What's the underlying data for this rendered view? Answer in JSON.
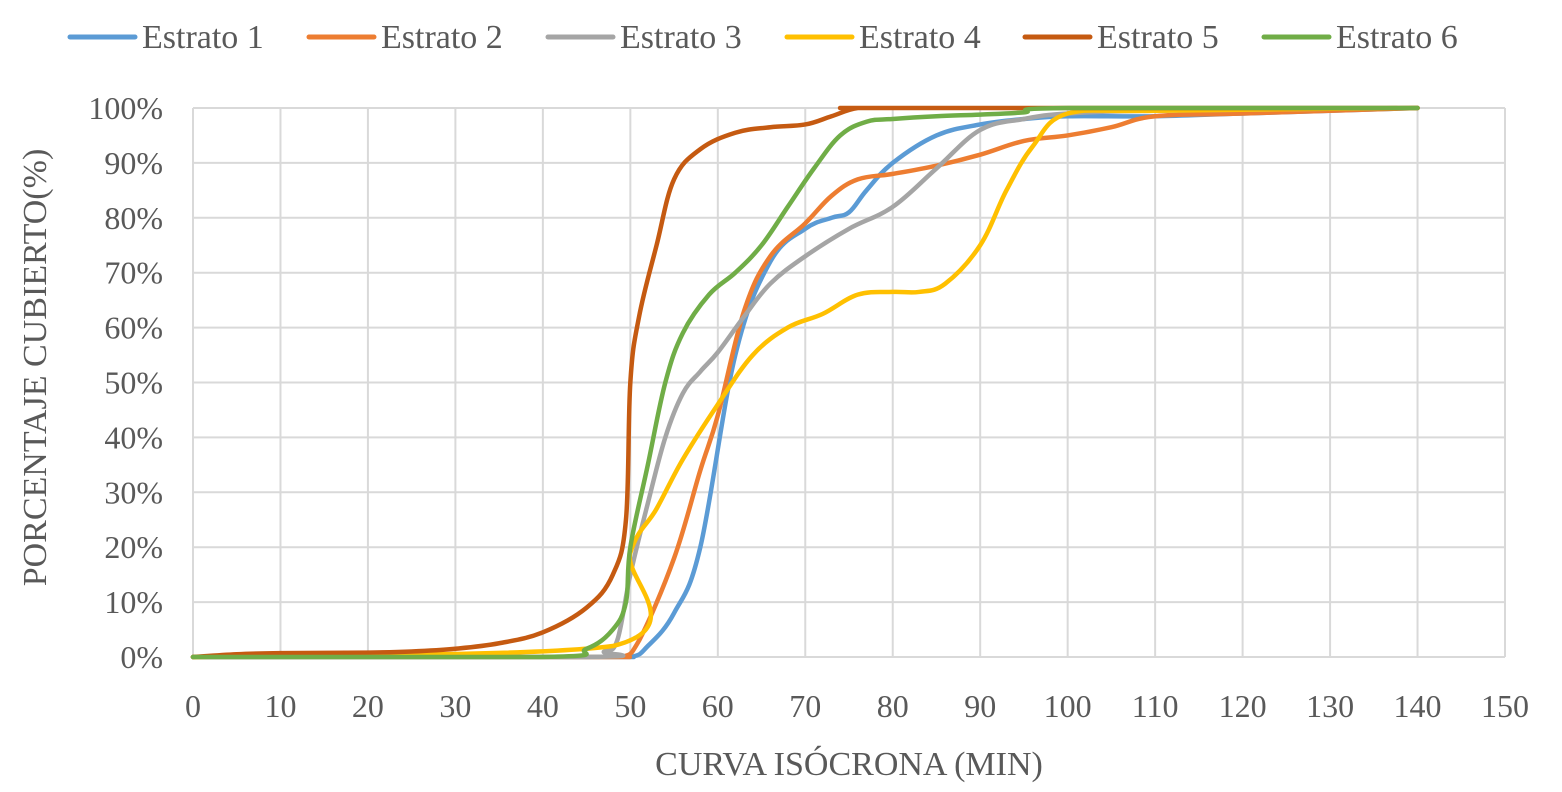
{
  "chart_data": {
    "type": "line",
    "xlabel": "CURVA ISÓCRONA (MIN)",
    "ylabel": "PORCENTAJE CUBIERTO(%)",
    "xlim": [
      0,
      150
    ],
    "ylim": [
      0,
      100
    ],
    "x_ticks": [
      "0",
      "10",
      "20",
      "30",
      "40",
      "50",
      "60",
      "70",
      "80",
      "90",
      "100",
      "110",
      "120",
      "130",
      "140",
      "150"
    ],
    "y_ticks": [
      "0%",
      "10%",
      "20%",
      "30%",
      "40%",
      "50%",
      "60%",
      "70%",
      "80%",
      "90%",
      "100%"
    ],
    "grid": true,
    "legend_position": "top",
    "series": [
      {
        "name": "Estrato 1",
        "color": "#5b9bd5",
        "x": [
          0,
          45,
          50,
          52,
          55,
          58,
          62,
          66,
          70,
          73,
          75,
          77,
          80,
          85,
          90,
          95,
          100,
          110,
          120,
          140
        ],
        "y": [
          0,
          0,
          0,
          2,
          8,
          20,
          55,
          72,
          78,
          80,
          81,
          85,
          90,
          95,
          97,
          98,
          98.5,
          98.5,
          99,
          100
        ]
      },
      {
        "name": "Estrato 2",
        "color": "#ed7d31",
        "x": [
          0,
          45,
          49,
          51,
          55,
          58,
          60,
          63,
          66,
          70,
          73,
          76,
          80,
          85,
          90,
          95,
          100,
          105,
          110,
          120,
          140
        ],
        "y": [
          0,
          0,
          0,
          3,
          18,
          34,
          44,
          63,
          73,
          79,
          84,
          87,
          88,
          89.5,
          91.5,
          94,
          95,
          96.5,
          98.5,
          99,
          100
        ]
      },
      {
        "name": "Estrato 3",
        "color": "#a5a5a5",
        "x": [
          0,
          45,
          47,
          48.5,
          50,
          52,
          54,
          56,
          58,
          60,
          63,
          66,
          70,
          75,
          80,
          85,
          90,
          95,
          100,
          110,
          140
        ],
        "y": [
          0,
          0,
          1,
          3,
          15,
          28,
          40,
          48,
          52,
          55.5,
          62,
          68,
          73,
          78,
          82,
          89,
          96,
          98,
          99,
          99.5,
          100
        ]
      },
      {
        "name": "Estrato 4",
        "color": "#ffc000",
        "x": [
          0,
          48,
          50,
          53,
          56,
          60,
          64,
          68,
          72,
          76,
          80,
          83,
          86,
          90,
          93,
          96,
          100,
          110,
          140
        ],
        "y": [
          0,
          2,
          19,
          27,
          36,
          46,
          55,
          60,
          62.5,
          66,
          66.5,
          66.5,
          68,
          75,
          85,
          93,
          99,
          99.5,
          100
        ]
      },
      {
        "name": "Estrato 5",
        "color": "#c55a11",
        "x": [
          0,
          5,
          10,
          20,
          25,
          30,
          35,
          40,
          45,
          48,
          49.5,
          50,
          51,
          53,
          55,
          58,
          62,
          66,
          70,
          73,
          76,
          80,
          140
        ],
        "y": [
          0,
          0.5,
          0.7,
          0.8,
          1,
          1.5,
          2.5,
          4.5,
          9,
          15,
          25,
          50,
          62,
          75,
          87,
          92.5,
          95.5,
          96.5,
          97,
          98.5,
          100,
          100,
          100
        ]
      },
      {
        "name": "Estrato 6",
        "color": "#70ad47",
        "x": [
          0,
          40,
          45,
          48,
          49.5,
          50,
          52,
          54,
          56,
          59,
          62,
          65,
          68,
          71,
          74,
          77,
          80,
          85,
          90,
          95,
          100,
          140
        ],
        "y": [
          0,
          0,
          1.5,
          5,
          10,
          20,
          35,
          50,
          59,
          66,
          70,
          75,
          82,
          89,
          95,
          97.5,
          98,
          98.5,
          98.8,
          99.2,
          100,
          100
        ]
      }
    ]
  }
}
